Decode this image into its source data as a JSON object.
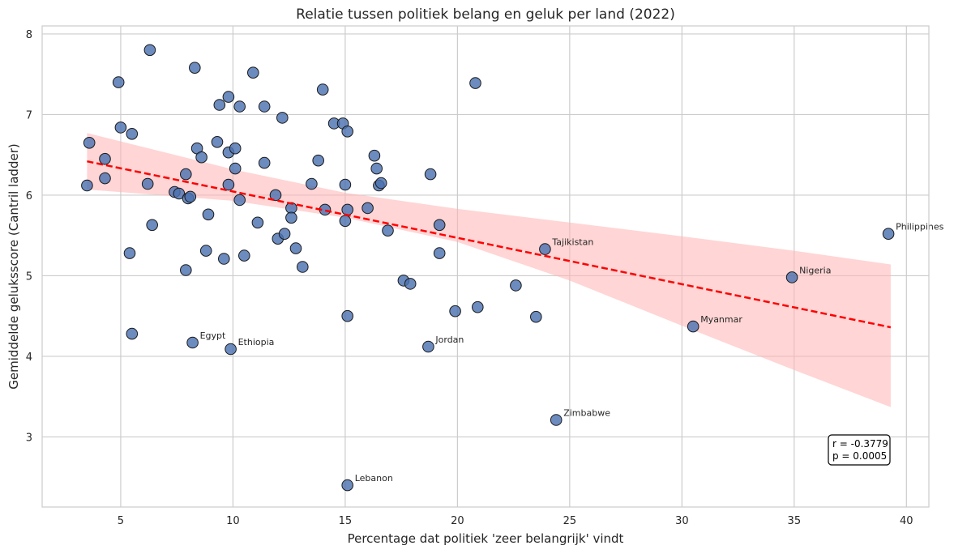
{
  "chart_data": {
    "type": "scatter",
    "title": "Relatie tussen politiek belang en geluk per land (2022)",
    "xlabel": "Percentage dat politiek 'zeer belangrijk' vindt",
    "ylabel": "Gemiddelde geluksscore (Cantril ladder)",
    "xlim": [
      1.5,
      41
    ],
    "ylim": [
      2.13,
      8.1
    ],
    "xticks": [
      5,
      10,
      15,
      20,
      25,
      30,
      35,
      40
    ],
    "yticks": [
      3,
      4,
      5,
      6,
      7,
      8
    ],
    "grid": true,
    "colors": {
      "points": "#4c72b0",
      "point_edge": "#1a1a1a",
      "regression_line": "#ff0000",
      "confidence_band": "#ffb3b3"
    },
    "regression": {
      "x": [
        3.5,
        39.3
      ],
      "y": [
        6.42,
        4.36
      ]
    },
    "confidence_band": {
      "x": [
        3.5,
        10,
        15,
        20,
        25,
        30,
        35,
        39.3
      ],
      "upper": [
        6.77,
        6.32,
        6.03,
        5.83,
        5.66,
        5.49,
        5.31,
        5.14
      ],
      "lower": [
        6.07,
        5.93,
        5.72,
        5.42,
        4.94,
        4.38,
        3.83,
        3.37
      ]
    },
    "stats": {
      "r_text": "r = -0.3779",
      "p_text": "p = 0.0005"
    },
    "points": [
      {
        "x": 3.5,
        "y": 6.12
      },
      {
        "x": 3.6,
        "y": 6.65
      },
      {
        "x": 4.3,
        "y": 6.45
      },
      {
        "x": 4.3,
        "y": 6.21
      },
      {
        "x": 4.9,
        "y": 7.4
      },
      {
        "x": 5.0,
        "y": 6.84
      },
      {
        "x": 5.4,
        "y": 5.28
      },
      {
        "x": 5.5,
        "y": 4.28
      },
      {
        "x": 5.5,
        "y": 6.76
      },
      {
        "x": 6.2,
        "y": 6.14
      },
      {
        "x": 6.3,
        "y": 7.8
      },
      {
        "x": 6.4,
        "y": 5.63
      },
      {
        "x": 7.4,
        "y": 6.04
      },
      {
        "x": 7.6,
        "y": 6.02
      },
      {
        "x": 7.9,
        "y": 6.26
      },
      {
        "x": 7.9,
        "y": 5.07
      },
      {
        "x": 8.0,
        "y": 5.96
      },
      {
        "x": 8.1,
        "y": 5.98
      },
      {
        "x": 8.2,
        "y": 4.17,
        "label": "Egypt"
      },
      {
        "x": 8.3,
        "y": 7.58
      },
      {
        "x": 8.4,
        "y": 6.58
      },
      {
        "x": 8.6,
        "y": 6.47
      },
      {
        "x": 8.8,
        "y": 5.31
      },
      {
        "x": 8.9,
        "y": 5.76
      },
      {
        "x": 9.3,
        "y": 6.66
      },
      {
        "x": 9.4,
        "y": 7.12
      },
      {
        "x": 9.6,
        "y": 5.21
      },
      {
        "x": 9.8,
        "y": 6.13
      },
      {
        "x": 9.8,
        "y": 7.22
      },
      {
        "x": 9.8,
        "y": 6.53
      },
      {
        "x": 9.9,
        "y": 4.09,
        "label": "Ethiopia"
      },
      {
        "x": 10.1,
        "y": 6.58
      },
      {
        "x": 10.1,
        "y": 6.33
      },
      {
        "x": 10.3,
        "y": 7.1
      },
      {
        "x": 10.3,
        "y": 5.94
      },
      {
        "x": 10.5,
        "y": 5.25
      },
      {
        "x": 10.9,
        "y": 7.52
      },
      {
        "x": 11.1,
        "y": 5.66
      },
      {
        "x": 11.4,
        "y": 6.4
      },
      {
        "x": 11.4,
        "y": 7.1
      },
      {
        "x": 11.9,
        "y": 6.0
      },
      {
        "x": 12.0,
        "y": 5.46
      },
      {
        "x": 12.2,
        "y": 6.96
      },
      {
        "x": 12.3,
        "y": 5.52
      },
      {
        "x": 12.6,
        "y": 5.84
      },
      {
        "x": 12.6,
        "y": 5.72
      },
      {
        "x": 12.8,
        "y": 5.34
      },
      {
        "x": 13.1,
        "y": 5.11
      },
      {
        "x": 13.5,
        "y": 6.14
      },
      {
        "x": 13.8,
        "y": 6.43
      },
      {
        "x": 14.0,
        "y": 7.31
      },
      {
        "x": 14.1,
        "y": 5.82
      },
      {
        "x": 14.5,
        "y": 6.89
      },
      {
        "x": 14.9,
        "y": 6.89
      },
      {
        "x": 15.0,
        "y": 5.68
      },
      {
        "x": 15.0,
        "y": 6.13
      },
      {
        "x": 15.1,
        "y": 6.79
      },
      {
        "x": 15.1,
        "y": 5.82
      },
      {
        "x": 15.1,
        "y": 4.5
      },
      {
        "x": 15.1,
        "y": 2.4,
        "label": "Lebanon"
      },
      {
        "x": 16.0,
        "y": 5.84
      },
      {
        "x": 16.3,
        "y": 6.49
      },
      {
        "x": 16.4,
        "y": 6.33
      },
      {
        "x": 16.5,
        "y": 6.12
      },
      {
        "x": 16.6,
        "y": 6.15
      },
      {
        "x": 16.9,
        "y": 5.56
      },
      {
        "x": 17.6,
        "y": 4.94
      },
      {
        "x": 17.9,
        "y": 4.9
      },
      {
        "x": 18.7,
        "y": 4.12,
        "label": "Jordan"
      },
      {
        "x": 18.8,
        "y": 6.26
      },
      {
        "x": 19.2,
        "y": 5.63
      },
      {
        "x": 19.2,
        "y": 5.28
      },
      {
        "x": 19.9,
        "y": 4.56
      },
      {
        "x": 20.8,
        "y": 7.39
      },
      {
        "x": 20.9,
        "y": 4.61
      },
      {
        "x": 22.6,
        "y": 4.88
      },
      {
        "x": 23.5,
        "y": 4.49
      },
      {
        "x": 23.9,
        "y": 5.33,
        "label": "Tajikistan"
      },
      {
        "x": 24.4,
        "y": 3.21,
        "label": "Zimbabwe"
      },
      {
        "x": 30.5,
        "y": 4.37,
        "label": "Myanmar"
      },
      {
        "x": 34.9,
        "y": 4.98,
        "label": "Nigeria"
      },
      {
        "x": 39.2,
        "y": 5.52,
        "label": "Philippines"
      }
    ]
  }
}
